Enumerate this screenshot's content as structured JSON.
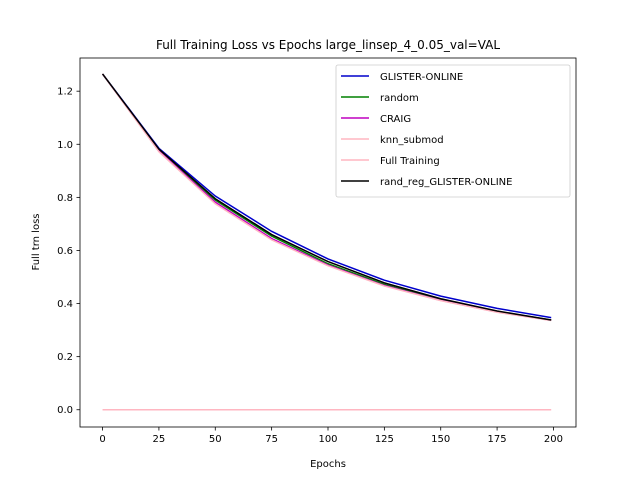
{
  "chart_data": {
    "type": "line",
    "title": "Full Training Loss vs Epochs large_linsep_4_0.05_val=VAL",
    "xlabel": "Epochs",
    "ylabel": "Full trn loss",
    "xlim": [
      -10,
      210
    ],
    "ylim": [
      -0.065,
      1.325
    ],
    "xticks": [
      0,
      25,
      50,
      75,
      100,
      125,
      150,
      175,
      200
    ],
    "yticks": [
      0.0,
      0.2,
      0.4,
      0.6,
      0.8,
      1.0,
      1.2
    ],
    "ytick_labels": [
      "0.0",
      "0.2",
      "0.4",
      "0.6",
      "0.8",
      "1.0",
      "1.2"
    ],
    "legend_position": "top-right",
    "grid": false,
    "series": [
      {
        "name": "GLISTER-ONLINE",
        "color": "#0000cc",
        "x": [
          0,
          25,
          50,
          75,
          100,
          125,
          150,
          175,
          199
        ],
        "y": [
          1.265,
          0.985,
          0.805,
          0.672,
          0.568,
          0.488,
          0.428,
          0.382,
          0.347
        ]
      },
      {
        "name": "random",
        "color": "#008000",
        "x": [
          0,
          25,
          50,
          75,
          100,
          125,
          150,
          175,
          199
        ],
        "y": [
          1.265,
          0.978,
          0.79,
          0.654,
          0.55,
          0.472,
          0.414,
          0.37,
          0.338
        ]
      },
      {
        "name": "CRAIG",
        "color": "#bf00bf",
        "x": [
          0,
          25,
          50,
          75,
          100,
          125,
          150,
          175,
          199
        ],
        "y": [
          1.265,
          0.975,
          0.782,
          0.645,
          0.545,
          0.468,
          0.412,
          0.368,
          0.337
        ]
      },
      {
        "name": "knn_submod",
        "color": "#ffb6c1",
        "x": [
          0,
          25,
          50,
          75,
          100,
          125,
          150,
          175,
          199
        ],
        "y": [
          1.265,
          0.972,
          0.776,
          0.64,
          0.542,
          0.466,
          0.411,
          0.367,
          0.336
        ]
      },
      {
        "name": "Full Training",
        "color": "#ffb6c1",
        "x": [
          0,
          50,
          100,
          150,
          199
        ],
        "y": [
          0.0,
          0.0,
          0.0,
          0.0,
          0.0
        ]
      },
      {
        "name": "rand_reg_GLISTER-ONLINE",
        "color": "#000000",
        "x": [
          0,
          25,
          50,
          75,
          100,
          125,
          150,
          175,
          199
        ],
        "y": [
          1.265,
          0.982,
          0.795,
          0.66,
          0.558,
          0.478,
          0.418,
          0.372,
          0.338
        ]
      }
    ]
  }
}
